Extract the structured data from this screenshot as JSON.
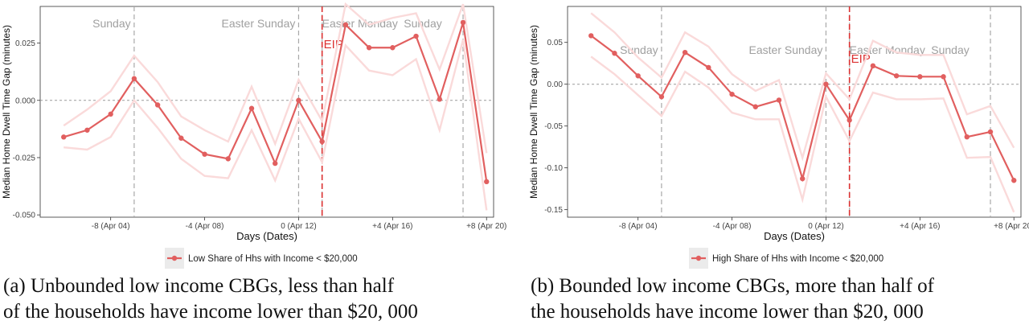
{
  "colors": {
    "line": "#e15f5f",
    "band": "#fadada",
    "eip": "#dc3232",
    "event": "#a9a9a9",
    "zero": "#9a9a9a",
    "legend_bg": "#ebebeb"
  },
  "chart_data": [
    {
      "type": "line",
      "title": "",
      "xlabel": "Days (Dates)",
      "ylabel": "Median Home Dwell Time Gap (minutes)",
      "xlim": [
        -11,
        8.3
      ],
      "ylim": [
        -0.051,
        0.041
      ],
      "x_ticks": [
        -8,
        -4,
        0,
        4,
        8
      ],
      "x_tick_labels": [
        "-8 (Apr 04)",
        "-4 (Apr 08)",
        "0 (Apr 12)",
        "+4 (Apr 16)",
        "+8 (Apr 20)"
      ],
      "y_ticks": [
        -0.05,
        -0.025,
        0,
        0.025
      ],
      "y_tick_labels": [
        "-0.050",
        "-0.025",
        "0.000",
        "0.025"
      ],
      "grid": false,
      "zero_line": 0,
      "events": [
        {
          "x": -7,
          "label": "Sunday"
        },
        {
          "x": 0,
          "label": "Easter Sunday"
        },
        {
          "x": 1,
          "label": "Easter Monday"
        },
        {
          "x": 7,
          "label": "Sunday"
        }
      ],
      "eip": {
        "x": 1,
        "label": "EIP"
      },
      "legend": {
        "position": "bottom",
        "label": "Low Share of Hhs with Income < $20,000"
      },
      "series": [
        {
          "name": "Low Share of Hhs with Income < $20,000",
          "x": [
            -10,
            -9,
            -8,
            -7,
            -6,
            -5,
            -4,
            -3,
            -2,
            -1,
            0,
            1,
            2,
            3,
            4,
            5,
            6,
            7,
            8
          ],
          "values": [
            -0.016,
            -0.013,
            -0.006,
            0.0095,
            -0.002,
            -0.0165,
            -0.0235,
            -0.0255,
            -0.0035,
            -0.0275,
            0.0,
            -0.018,
            0.033,
            0.023,
            0.023,
            0.028,
            0.0005,
            0.034,
            -0.0355
          ],
          "upper": [
            -0.011,
            -0.004,
            0.004,
            0.0195,
            0.008,
            -0.007,
            -0.013,
            -0.018,
            0.006,
            -0.019,
            0.009,
            -0.009,
            0.042,
            0.033,
            0.036,
            0.038,
            0.0135,
            0.042,
            -0.023
          ],
          "lower": [
            -0.0205,
            -0.0215,
            -0.016,
            0.0,
            -0.012,
            -0.0255,
            -0.033,
            -0.034,
            -0.013,
            -0.035,
            -0.008,
            -0.027,
            0.024,
            0.013,
            0.011,
            0.018,
            -0.013,
            0.0265,
            -0.048
          ]
        }
      ]
    },
    {
      "type": "line",
      "title": "",
      "xlabel": "Days (Dates)",
      "ylabel": "Median Home Dwell Time Gap (minutes)",
      "xlim": [
        -11,
        8.3
      ],
      "ylim": [
        -0.159,
        0.093
      ],
      "x_ticks": [
        -8,
        -4,
        0,
        4,
        8
      ],
      "x_tick_labels": [
        "-8 (Apr 04)",
        "-4 (Apr 08)",
        "0 (Apr 12)",
        "+4 (Apr 16)",
        "+8 (Apr 20)"
      ],
      "y_ticks": [
        -0.15,
        -0.1,
        -0.05,
        0,
        0.05
      ],
      "y_tick_labels": [
        "-0.15",
        "-0.10",
        "-0.05",
        "0.00",
        "0.05"
      ],
      "grid": false,
      "zero_line": 0,
      "events": [
        {
          "x": -7,
          "label": "Sunday"
        },
        {
          "x": 0,
          "label": "Easter Sunday"
        },
        {
          "x": 1,
          "label": "Easter Monday"
        },
        {
          "x": 7,
          "label": "Sunday"
        }
      ],
      "eip": {
        "x": 1,
        "label": "EIP"
      },
      "legend": {
        "position": "bottom",
        "label": "High Share of Hhs with Income < $20,000"
      },
      "series": [
        {
          "name": "High Share of Hhs with Income < $20,000",
          "x": [
            -10,
            -9,
            -8,
            -7,
            -6,
            -5,
            -4,
            -3,
            -2,
            -1,
            0,
            1,
            2,
            3,
            4,
            5,
            6,
            7,
            8
          ],
          "values": [
            0.058,
            0.037,
            0.01,
            -0.015,
            0.038,
            0.02,
            -0.012,
            -0.027,
            -0.019,
            -0.113,
            0.0,
            -0.043,
            0.022,
            0.01,
            0.009,
            0.009,
            -0.063,
            -0.057,
            -0.115
          ],
          "upper": [
            0.085,
            0.062,
            0.032,
            0.008,
            0.062,
            0.045,
            0.012,
            -0.008,
            0.005,
            -0.088,
            0.013,
            -0.018,
            0.052,
            0.038,
            0.035,
            0.035,
            -0.036,
            -0.026,
            -0.076
          ],
          "lower": [
            0.033,
            0.012,
            -0.013,
            -0.038,
            0.015,
            -0.004,
            -0.034,
            -0.042,
            -0.042,
            -0.138,
            -0.015,
            -0.068,
            -0.01,
            -0.018,
            -0.018,
            -0.017,
            -0.088,
            -0.087,
            -0.153
          ]
        }
      ]
    }
  ],
  "captions": {
    "a_line1": "(a) Unbounded low income CBGs, less than half",
    "a_line2": "of the households have income lower than $20, 000",
    "b_line1": "(b) Bounded low income CBGs, more than half of",
    "b_line2": "the households have income lower than $20, 000"
  }
}
